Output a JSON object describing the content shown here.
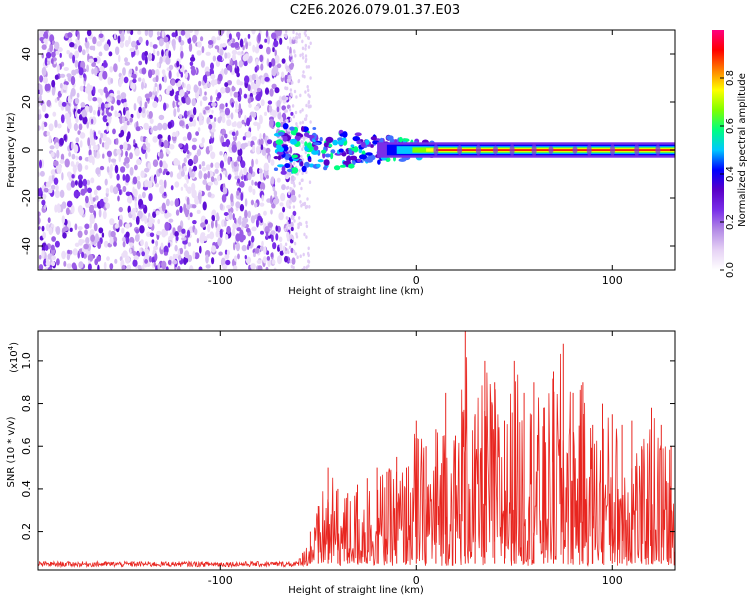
{
  "title": "C2E6.2026.079.01.37.E03",
  "chart_data": [
    {
      "type": "heatmap",
      "name": "spectrogram",
      "xlabel": "Height of straight line (km)",
      "ylabel": "Frequency (Hz)",
      "xlim": [
        -193,
        132
      ],
      "ylim": [
        -50,
        50
      ],
      "x_ticks": [
        -100,
        0,
        100
      ],
      "x_tick_labels": [
        "-100",
        "0",
        "100"
      ],
      "y_ticks": [
        -40,
        -20,
        0,
        20,
        40
      ],
      "y_tick_labels": [
        "-40",
        "-20",
        "0",
        "20",
        "40"
      ],
      "noise_region": [
        -193,
        -62
      ],
      "signal_onset": -72,
      "colorbar": {
        "label": "Normalized spectral amplitude",
        "range": [
          0,
          1
        ],
        "ticks": [
          0.0,
          0.2,
          0.4,
          0.6,
          0.8
        ],
        "tick_labels": [
          "0.0",
          "0.2",
          "0.4",
          "0.6",
          "0.8"
        ],
        "colormap": [
          "#ffffff",
          "#e6d2f5",
          "#b48be6",
          "#7a2ee8",
          "#5a00c8",
          "#0000ff",
          "#00c8ff",
          "#00ff80",
          "#80ff00",
          "#ffff00",
          "#ff8000",
          "#ff0000",
          "#ff0080"
        ]
      }
    },
    {
      "type": "line",
      "name": "snr",
      "xlabel": "Height of straight line (km)",
      "ylabel": "SNR (10 * v/v)",
      "multiplier_label": "(x10",
      "multiplier_exp": "4",
      "multiplier_close": ")",
      "xlim": [
        -193,
        132
      ],
      "ylim": [
        0.02,
        1.14
      ],
      "x_ticks": [
        -100,
        0,
        100
      ],
      "x_tick_labels": [
        "-100",
        "0",
        "100"
      ],
      "y_ticks": [
        0.2,
        0.4,
        0.6,
        0.8,
        1.0
      ],
      "y_tick_labels": [
        "0.2",
        "0.4",
        "0.6",
        "0.8",
        "1.0"
      ],
      "color": "#e8251f",
      "x": [
        -193,
        -180,
        -160,
        -140,
        -120,
        -100,
        -80,
        -65,
        -58,
        -54,
        -50,
        -45,
        -40,
        -35,
        -30,
        -25,
        -20,
        -15,
        -10,
        -5,
        0,
        5,
        10,
        15,
        20,
        25,
        30,
        35,
        40,
        45,
        50,
        55,
        60,
        65,
        70,
        75,
        80,
        85,
        90,
        95,
        100,
        105,
        110,
        115,
        120,
        125,
        130,
        132
      ],
      "y": [
        0.05,
        0.05,
        0.05,
        0.05,
        0.05,
        0.05,
        0.05,
        0.06,
        0.1,
        0.2,
        0.32,
        0.5,
        0.4,
        0.38,
        0.42,
        0.45,
        0.5,
        0.48,
        0.55,
        0.5,
        0.72,
        0.6,
        0.68,
        0.85,
        0.65,
        1.14,
        0.75,
        1.0,
        0.9,
        0.72,
        1.0,
        0.85,
        0.9,
        0.78,
        0.95,
        1.08,
        0.85,
        0.9,
        0.7,
        0.8,
        0.75,
        0.7,
        0.72,
        0.6,
        0.78,
        0.7,
        0.6,
        0.32
      ]
    }
  ]
}
